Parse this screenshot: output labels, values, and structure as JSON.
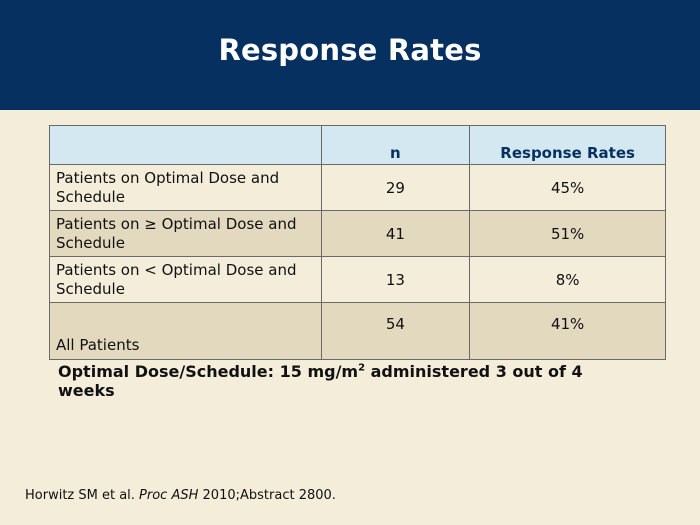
{
  "slide": {
    "title": "Response Rates"
  },
  "table": {
    "columns": [
      "",
      "n",
      "Response Rates"
    ],
    "rows": [
      {
        "label": "Patients on Optimal Dose and Schedule",
        "n": "29",
        "rate": "45%"
      },
      {
        "label": "Patients on ≥ Optimal Dose and Schedule",
        "n": "41",
        "rate": "51%"
      },
      {
        "label": "Patients on < Optimal Dose and Schedule",
        "n": "13",
        "rate": "8%"
      },
      {
        "label": "All Patients",
        "n": "54",
        "rate": "41%"
      }
    ]
  },
  "note": {
    "prefix": "Optimal Dose/Schedule: 15 mg/m",
    "superscript": "2",
    "suffix": " administered 3 out of 4 weeks"
  },
  "citation": {
    "authors": "Horwitz SM et al. ",
    "journal": "Proc ASH",
    "details": " 2010;Abstract 2800."
  },
  "colors": {
    "header_bg": "#06305f",
    "page_bg": "#f3edda",
    "table_header_bg": "#d3e8f1",
    "row_alt_bg": "#e2d9bf"
  }
}
